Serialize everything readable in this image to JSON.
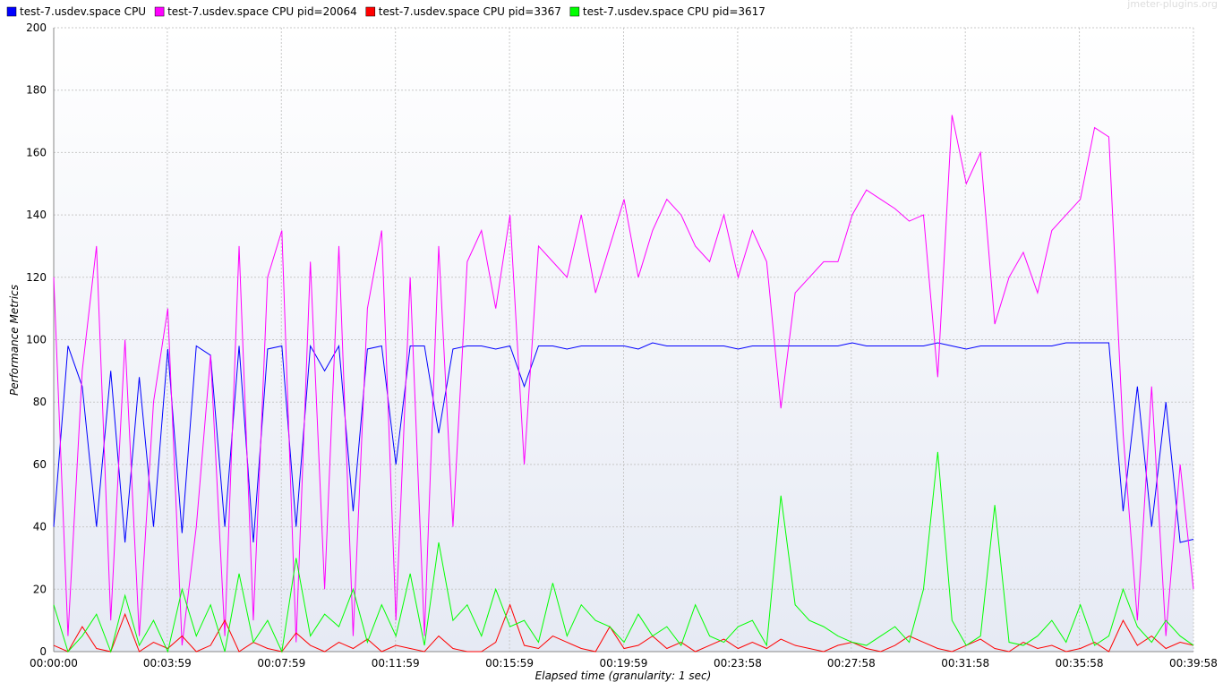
{
  "chart_data": {
    "type": "line",
    "y_label": "Performance Metrics",
    "x_label": "Elapsed time (granularity: 1 sec)",
    "watermark": "jmeter-plugins.org",
    "grid": true,
    "xlim": [
      0,
      2398
    ],
    "ylim": [
      0,
      200
    ],
    "xticks": [
      {
        "value": 0,
        "label": "00:00:00"
      },
      {
        "value": 239,
        "label": "00:03:59"
      },
      {
        "value": 479,
        "label": "00:07:59"
      },
      {
        "value": 719,
        "label": "00:11:59"
      },
      {
        "value": 959,
        "label": "00:15:59"
      },
      {
        "value": 1199,
        "label": "00:19:59"
      },
      {
        "value": 1439,
        "label": "00:23:58"
      },
      {
        "value": 1678,
        "label": "00:27:58"
      },
      {
        "value": 1918,
        "label": "00:31:58"
      },
      {
        "value": 2158,
        "label": "00:35:58"
      },
      {
        "value": 2398,
        "label": "00:39:58"
      }
    ],
    "yticks": [
      0,
      20,
      40,
      60,
      80,
      100,
      120,
      140,
      160,
      180,
      200
    ],
    "x": [
      0,
      30,
      60,
      90,
      120,
      150,
      180,
      210,
      240,
      270,
      300,
      330,
      360,
      390,
      420,
      450,
      480,
      510,
      540,
      570,
      600,
      630,
      660,
      690,
      720,
      750,
      780,
      810,
      840,
      870,
      900,
      930,
      960,
      990,
      1020,
      1050,
      1080,
      1110,
      1140,
      1170,
      1200,
      1230,
      1260,
      1290,
      1320,
      1350,
      1380,
      1410,
      1440,
      1470,
      1500,
      1530,
      1560,
      1590,
      1620,
      1650,
      1680,
      1710,
      1740,
      1770,
      1800,
      1830,
      1860,
      1890,
      1920,
      1950,
      1980,
      2010,
      2040,
      2070,
      2100,
      2130,
      2160,
      2190,
      2220,
      2250,
      2280,
      2310,
      2340,
      2370,
      2398
    ],
    "series": [
      {
        "name": "test-7.usdev.space CPU",
        "color": "#0000ff",
        "values": [
          40,
          98,
          85,
          40,
          90,
          35,
          88,
          40,
          97,
          38,
          98,
          95,
          40,
          98,
          35,
          97,
          98,
          40,
          98,
          90,
          98,
          45,
          97,
          98,
          60,
          98,
          98,
          70,
          97,
          98,
          98,
          97,
          98,
          85,
          98,
          98,
          97,
          98,
          98,
          98,
          98,
          97,
          99,
          98,
          98,
          98,
          98,
          98,
          97,
          98,
          98,
          98,
          98,
          98,
          98,
          98,
          99,
          98,
          98,
          98,
          98,
          98,
          99,
          98,
          97,
          98,
          98,
          98,
          98,
          98,
          98,
          99,
          99,
          99,
          99,
          45,
          85,
          40,
          80,
          35,
          36
        ]
      },
      {
        "name": "test-7.usdev.space CPU pid=20064",
        "color": "#ff00ff",
        "values": [
          120,
          5,
          90,
          130,
          10,
          100,
          5,
          80,
          110,
          2,
          40,
          95,
          5,
          130,
          10,
          120,
          135,
          3,
          125,
          20,
          130,
          5,
          110,
          135,
          10,
          120,
          5,
          130,
          40,
          125,
          135,
          110,
          140,
          60,
          130,
          125,
          120,
          140,
          115,
          130,
          145,
          120,
          135,
          145,
          140,
          130,
          125,
          140,
          120,
          135,
          125,
          78,
          115,
          120,
          125,
          125,
          140,
          148,
          145,
          142,
          138,
          140,
          88,
          172,
          150,
          160,
          105,
          120,
          128,
          115,
          135,
          140,
          145,
          168,
          165,
          70,
          10,
          85,
          5,
          60,
          20
        ]
      },
      {
        "name": "test-7.usdev.space CPU pid=3367",
        "color": "#ff0000",
        "values": [
          2,
          0,
          8,
          1,
          0,
          12,
          0,
          3,
          1,
          5,
          0,
          2,
          10,
          0,
          3,
          1,
          0,
          6,
          2,
          0,
          3,
          1,
          4,
          0,
          2,
          1,
          0,
          5,
          1,
          0,
          0,
          3,
          15,
          2,
          1,
          5,
          3,
          1,
          0,
          8,
          1,
          2,
          5,
          1,
          3,
          0,
          2,
          4,
          1,
          3,
          1,
          4,
          2,
          1,
          0,
          2,
          3,
          1,
          0,
          2,
          5,
          3,
          1,
          0,
          2,
          4,
          1,
          0,
          3,
          1,
          2,
          0,
          1,
          3,
          0,
          10,
          2,
          5,
          1,
          3,
          2
        ]
      },
      {
        "name": "test-7.usdev.space CPU pid=3617",
        "color": "#00ff00",
        "values": [
          15,
          0,
          5,
          12,
          0,
          18,
          2,
          10,
          0,
          20,
          5,
          15,
          0,
          25,
          3,
          10,
          0,
          30,
          5,
          12,
          8,
          20,
          3,
          15,
          5,
          25,
          2,
          35,
          10,
          15,
          5,
          20,
          8,
          10,
          3,
          22,
          5,
          15,
          10,
          8,
          3,
          12,
          5,
          8,
          2,
          15,
          5,
          3,
          8,
          10,
          2,
          50,
          15,
          10,
          8,
          5,
          3,
          2,
          5,
          8,
          3,
          20,
          64,
          10,
          2,
          5,
          47,
          3,
          2,
          5,
          10,
          3,
          15,
          2,
          5,
          20,
          8,
          3,
          10,
          5,
          2
        ]
      }
    ]
  }
}
